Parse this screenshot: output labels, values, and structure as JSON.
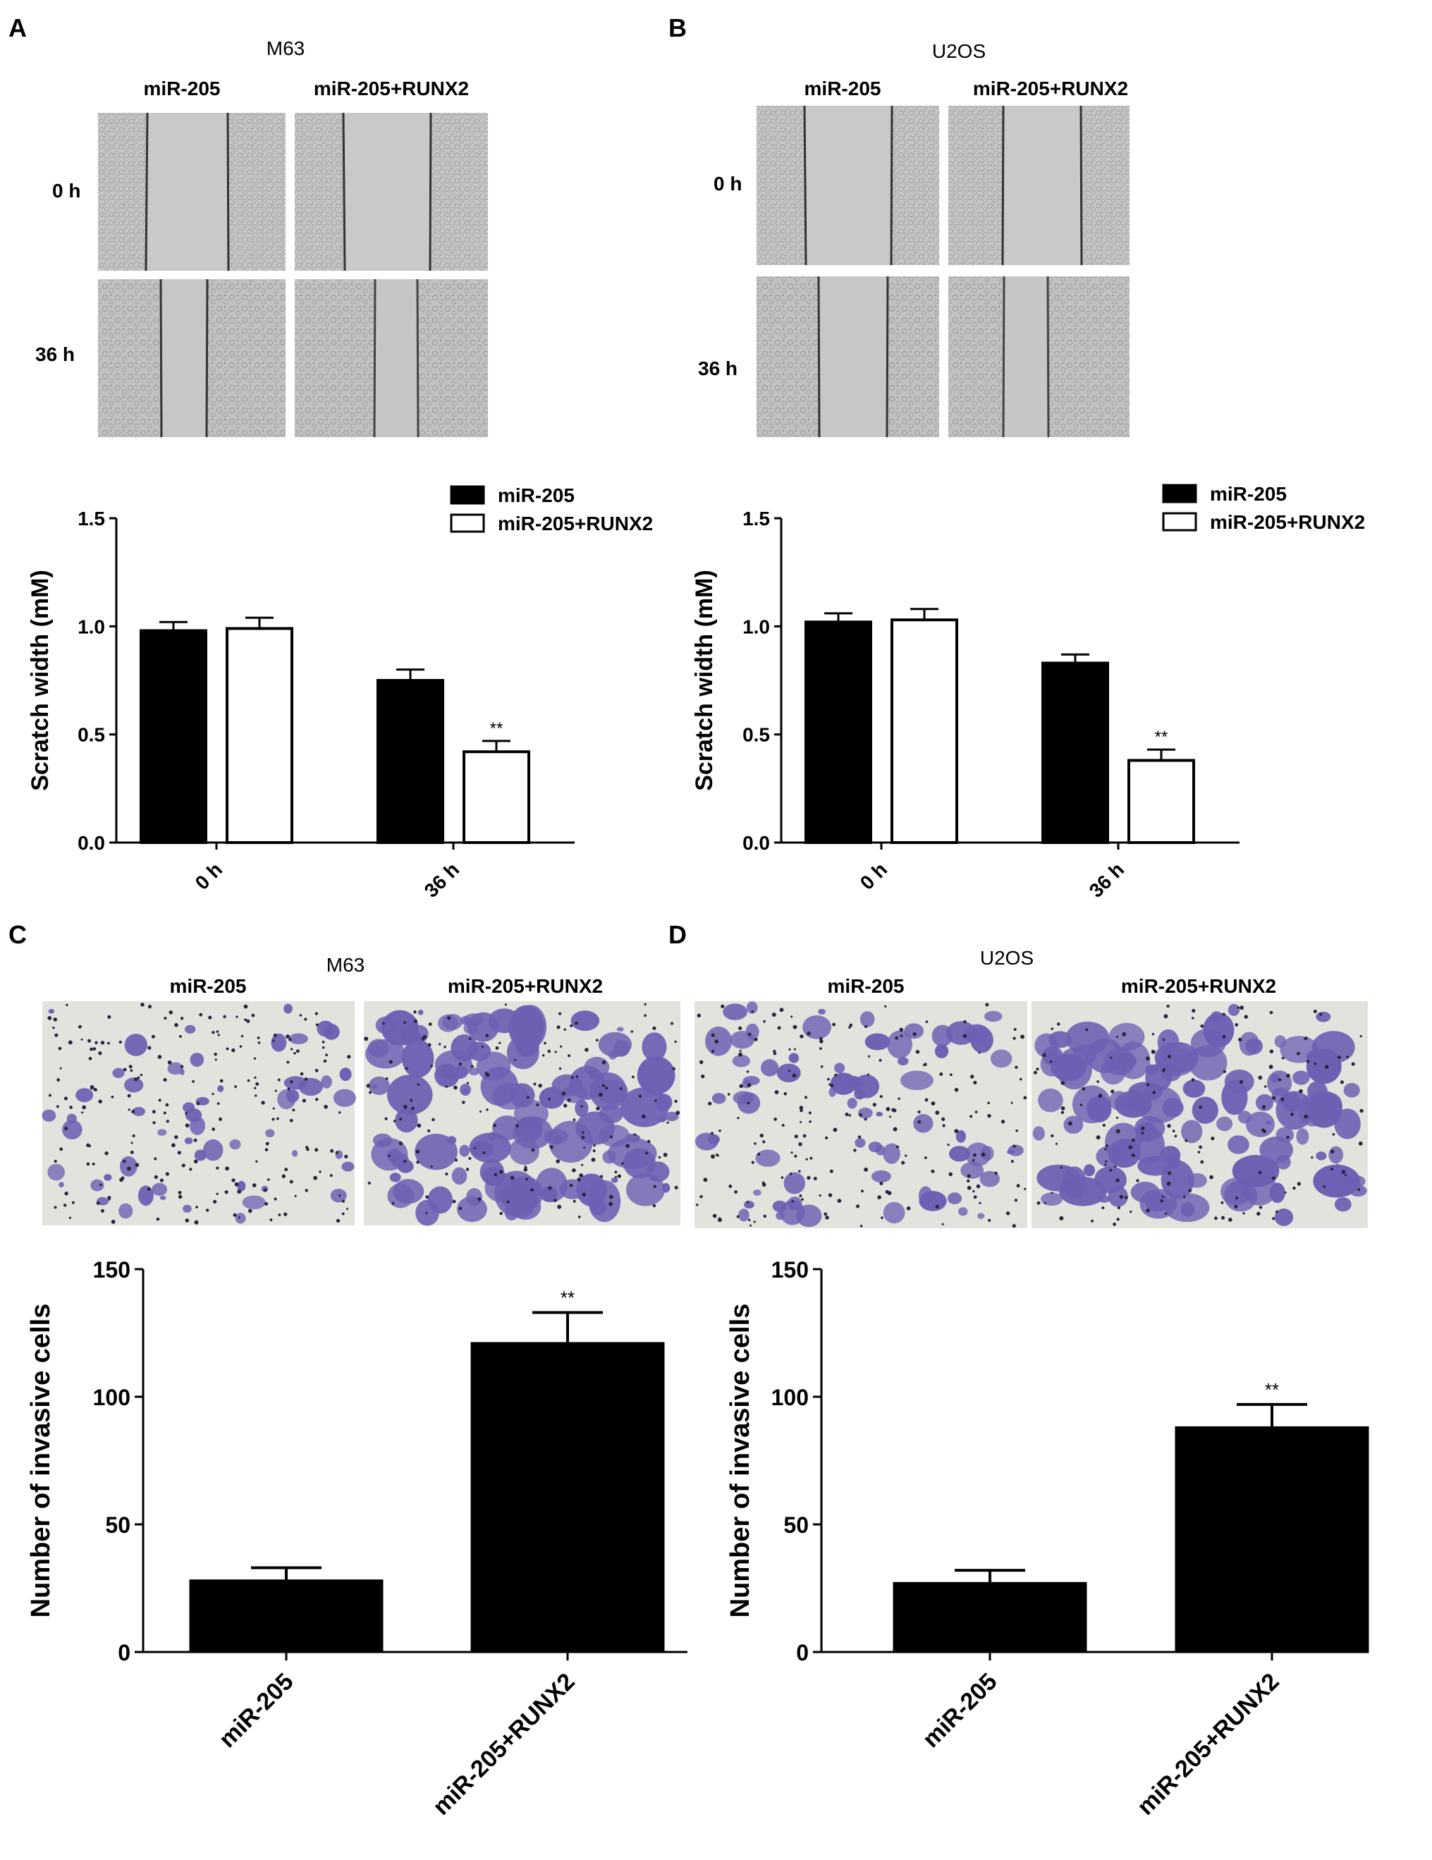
{
  "panels": [
    {
      "letter": "A",
      "cell_line": "M63",
      "columns": [
        "miR-205",
        "miR-205+RUNX2"
      ],
      "rows": [
        "0 h",
        "36 h"
      ]
    },
    {
      "letter": "B",
      "cell_line": "U2OS",
      "columns": [
        "miR-205",
        "miR-205+RUNX2"
      ],
      "rows": [
        "0 h",
        "36 h"
      ]
    },
    {
      "letter": "C",
      "cell_line": "M63",
      "columns": [
        "miR-205",
        "miR-205+RUNX2"
      ]
    },
    {
      "letter": "D",
      "cell_line": "U2OS",
      "columns": [
        "miR-205",
        "miR-205+RUNX2"
      ]
    }
  ],
  "colors": {
    "bar_fill_dark": "#000000",
    "bar_fill_light": "#ffffff",
    "wound_bg": "#c9c9c9",
    "invasion_bg": "#e4e2dc",
    "invasion_cell": "#6e5fb3"
  },
  "chart_data": [
    {
      "type": "bar",
      "panel": "A",
      "categories": [
        "0 h",
        "36 h"
      ],
      "series": [
        {
          "name": "miR-205",
          "values": [
            0.98,
            0.75
          ],
          "errors": [
            0.04,
            0.05
          ],
          "fill": "#000000"
        },
        {
          "name": "miR-205+RUNX2",
          "values": [
            0.99,
            0.42
          ],
          "errors": [
            0.05,
            0.05
          ],
          "fill": "#ffffff"
        }
      ],
      "annotations": [
        {
          "text": "**",
          "category": "36 h",
          "series": "miR-205+RUNX2"
        }
      ],
      "ylabel": "Scratch width (mM)",
      "ylim": [
        0,
        1.5
      ],
      "yticks": [
        "0.0",
        "0.5",
        "1.0",
        "1.5"
      ],
      "legend": "top-right"
    },
    {
      "type": "bar",
      "panel": "B",
      "categories": [
        "0 h",
        "36 h"
      ],
      "series": [
        {
          "name": "miR-205",
          "values": [
            1.02,
            0.83
          ],
          "errors": [
            0.04,
            0.04
          ],
          "fill": "#000000"
        },
        {
          "name": "miR-205+RUNX2",
          "values": [
            1.03,
            0.38
          ],
          "errors": [
            0.05,
            0.05
          ],
          "fill": "#ffffff"
        }
      ],
      "annotations": [
        {
          "text": "**",
          "category": "36 h",
          "series": "miR-205+RUNX2"
        }
      ],
      "ylabel": "Scratch width (mM)",
      "ylim": [
        0,
        1.5
      ],
      "yticks": [
        "0.0",
        "0.5",
        "1.0",
        "1.5"
      ],
      "legend": "top-right"
    },
    {
      "type": "bar",
      "panel": "C",
      "categories": [
        "miR-205",
        "miR-205+RUNX2"
      ],
      "values": [
        28,
        121
      ],
      "errors": [
        5,
        12
      ],
      "annotations": [
        {
          "text": "**",
          "category": "miR-205+RUNX2"
        }
      ],
      "ylabel": "Number of invasive cells",
      "ylim": [
        0,
        150
      ],
      "yticks": [
        "0",
        "50",
        "100",
        "150"
      ]
    },
    {
      "type": "bar",
      "panel": "D",
      "categories": [
        "miR-205",
        "miR-205+RUNX2"
      ],
      "values": [
        27,
        88
      ],
      "errors": [
        5,
        9
      ],
      "annotations": [
        {
          "text": "**",
          "category": "miR-205+RUNX2"
        }
      ],
      "ylabel": "Number of invasive cells",
      "ylim": [
        0,
        150
      ],
      "yticks": [
        "0",
        "50",
        "100",
        "150"
      ]
    }
  ]
}
